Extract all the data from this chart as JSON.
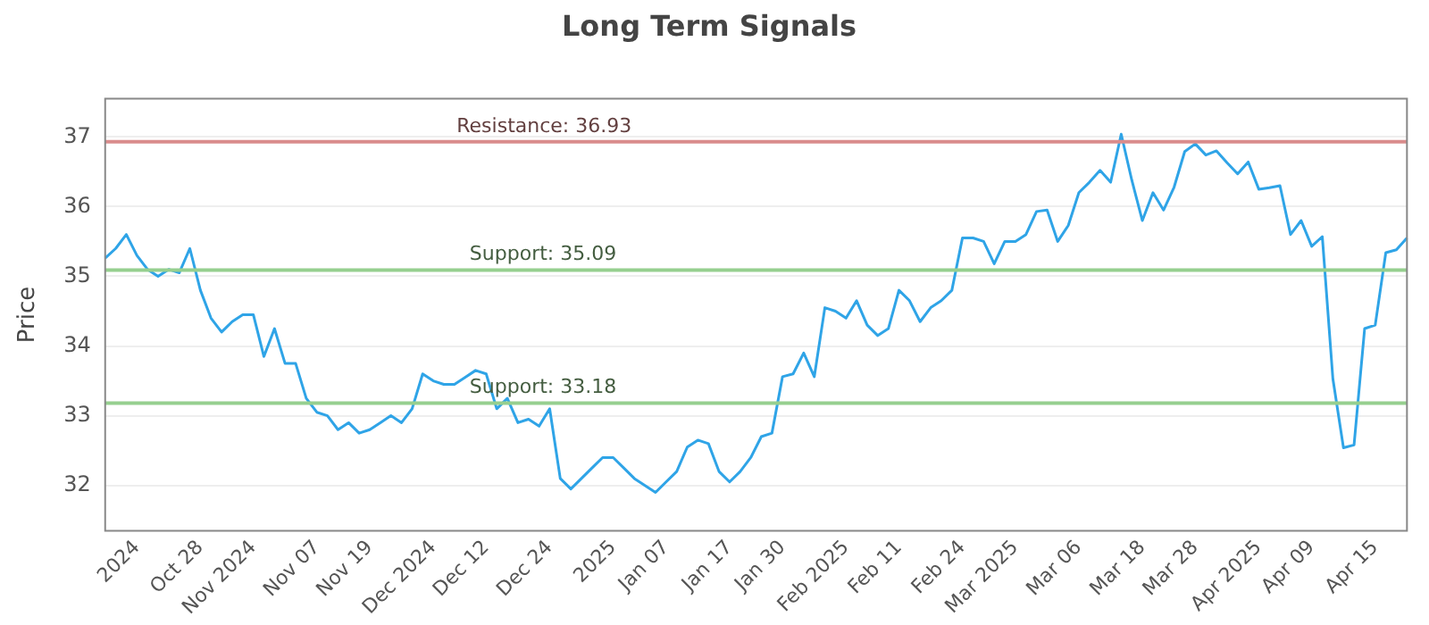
{
  "chart_data": {
    "type": "line",
    "title": "Long Term Signals",
    "ylabel": "Price",
    "categories": [
      null,
      null,
      null,
      "2024",
      null,
      null,
      null,
      null,
      null,
      "Oct 28",
      null,
      null,
      null,
      null,
      "Nov 2024",
      null,
      null,
      null,
      null,
      null,
      "Nov 07",
      null,
      null,
      null,
      null,
      "Nov 19",
      null,
      null,
      null,
      null,
      null,
      "Dec 2024",
      null,
      null,
      null,
      null,
      "Dec 12",
      null,
      null,
      null,
      null,
      null,
      "Dec 24",
      null,
      null,
      null,
      null,
      null,
      "2025",
      null,
      null,
      null,
      null,
      "Jan 07",
      null,
      null,
      null,
      null,
      null,
      "Jan 17",
      null,
      null,
      null,
      null,
      "Jan 30",
      null,
      null,
      null,
      null,
      null,
      "Feb 2025",
      null,
      null,
      null,
      null,
      "Feb 11",
      null,
      null,
      null,
      null,
      null,
      "Feb 24",
      null,
      null,
      null,
      null,
      "Mar 2025",
      null,
      null,
      null,
      null,
      null,
      "Mar 06",
      null,
      null,
      null,
      null,
      null,
      "Mar 18",
      null,
      null,
      null,
      null,
      "Mar 28",
      null,
      null,
      null,
      null,
      null,
      "Apr 2025",
      null,
      null,
      null,
      null,
      "Apr 09",
      null,
      null,
      null,
      null,
      null,
      "Apr 15",
      null,
      null,
      null
    ],
    "series": [
      {
        "color": "#2fa4e7",
        "values": [
          35.26,
          35.4,
          35.6,
          35.3,
          35.1,
          35.0,
          35.1,
          35.05,
          35.4,
          34.8,
          34.4,
          34.2,
          34.35,
          34.45,
          34.45,
          33.85,
          34.25,
          33.75,
          33.75,
          33.25,
          33.05,
          33.0,
          32.8,
          32.9,
          32.75,
          32.8,
          32.9,
          33.0,
          32.9,
          33.1,
          33.6,
          33.5,
          33.45,
          33.45,
          33.55,
          33.65,
          33.6,
          33.1,
          33.25,
          32.9,
          32.95,
          32.85,
          33.1,
          32.1,
          31.95,
          32.1,
          32.25,
          32.4,
          32.4,
          32.25,
          32.1,
          32.0,
          31.9,
          32.05,
          32.2,
          32.55,
          32.65,
          32.6,
          32.2,
          32.05,
          32.2,
          32.4,
          32.7,
          32.75,
          33.56,
          33.6,
          33.9,
          33.56,
          34.55,
          34.5,
          34.4,
          34.65,
          34.3,
          34.15,
          34.25,
          34.8,
          34.65,
          34.35,
          34.55,
          34.65,
          34.8,
          35.55,
          35.55,
          35.5,
          35.18,
          35.5,
          35.5,
          35.6,
          35.93,
          35.95,
          35.5,
          35.73,
          36.2,
          36.35,
          36.52,
          36.35,
          37.04,
          36.38,
          35.8,
          36.2,
          35.95,
          36.28,
          36.79,
          36.9,
          36.74,
          36.8,
          36.63,
          36.47,
          36.64,
          36.25,
          36.27,
          36.3,
          35.6,
          35.8,
          35.43,
          35.57,
          33.53,
          32.54,
          32.58,
          34.25,
          34.3,
          35.34,
          35.38,
          35.55
        ]
      }
    ],
    "ylim": [
      31.35,
      37.55
    ],
    "yticks": [
      32,
      33,
      34,
      35,
      36,
      37
    ],
    "grid": "y",
    "legend": false,
    "marker": "none",
    "line_style": "solid",
    "ref_lines": [
      {
        "axis": "y",
        "value": 36.93,
        "label": "Resistance: 36.93",
        "color": "#d98c8c"
      },
      {
        "axis": "y",
        "value": 35.09,
        "label": "Support: 35.09",
        "color": "#96cf8f"
      },
      {
        "axis": "y",
        "value": 33.18,
        "label": "Support: 33.18",
        "color": "#96cf8f"
      }
    ]
  }
}
